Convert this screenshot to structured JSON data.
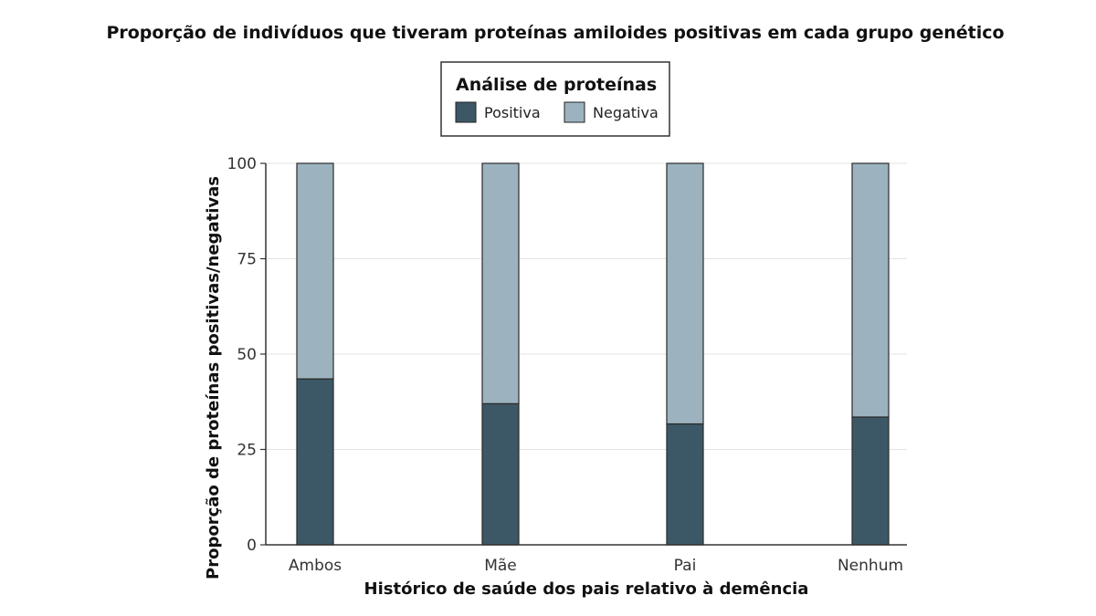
{
  "chart_data": {
    "type": "bar",
    "stacked": true,
    "title": "Proporção de indivíduos que tiveram proteínas amiloides positivas em cada grupo genético",
    "xlabel": "Histórico de saúde dos pais relativo à demência",
    "ylabel": "Proporção de proteínas positivas/negativas",
    "ylim": [
      0,
      100
    ],
    "yticks": [
      "0",
      "25",
      "50",
      "75",
      "100"
    ],
    "grid": true,
    "legend": {
      "title": "Análise de proteínas",
      "placement": "top-center"
    },
    "categories": [
      "Ambos",
      "Mãe",
      "Pai",
      "Nenhum"
    ],
    "series": [
      {
        "name": "Positiva",
        "color": "#3c5866",
        "values": [
          43.5,
          37,
          31.7,
          33.5
        ]
      },
      {
        "name": "Negativa",
        "color": "#9cb3bf",
        "values": [
          56.5,
          63,
          68.3,
          66.5
        ]
      }
    ]
  }
}
